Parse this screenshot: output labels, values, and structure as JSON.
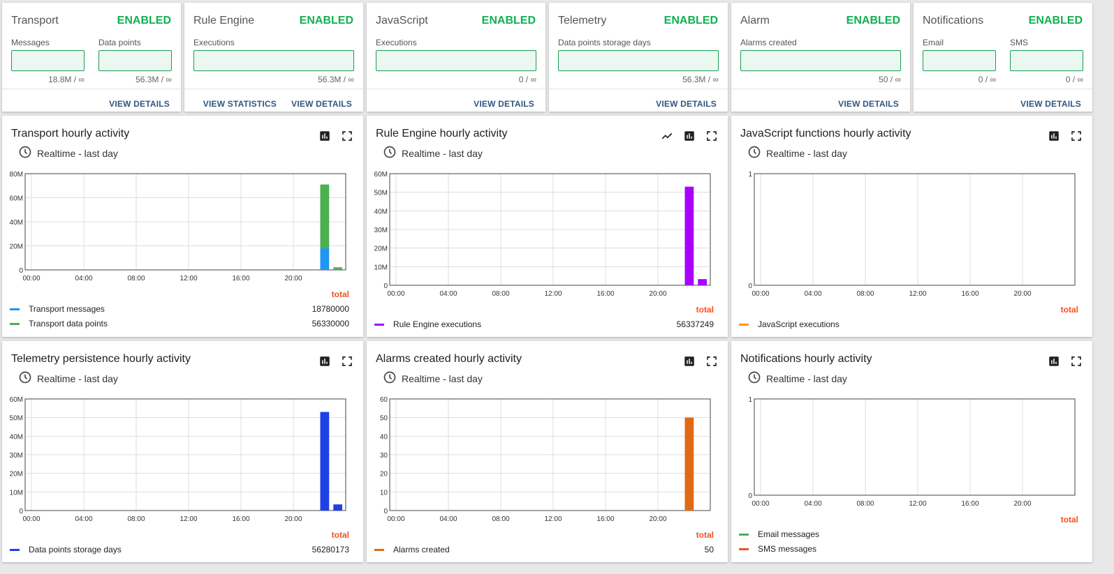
{
  "colors": {
    "enabled": "#10b050",
    "action": "#305680",
    "total": "#f4511e"
  },
  "apis": [
    {
      "title": "Transport",
      "status": "ENABLED",
      "counters": [
        {
          "label": "Messages",
          "value": "18.8M / ∞"
        },
        {
          "label": "Data points",
          "value": "56.3M / ∞"
        }
      ],
      "actions": [
        "VIEW DETAILS"
      ]
    },
    {
      "title": "Rule Engine",
      "status": "ENABLED",
      "counters": [
        {
          "label": "Executions",
          "value": "56.3M / ∞"
        }
      ],
      "actions": [
        "VIEW STATISTICS",
        "VIEW DETAILS"
      ]
    },
    {
      "title": "JavaScript",
      "status": "ENABLED",
      "counters": [
        {
          "label": "Executions",
          "value": "0 / ∞"
        }
      ],
      "actions": [
        "VIEW DETAILS"
      ]
    },
    {
      "title": "Telemetry",
      "status": "ENABLED",
      "counters": [
        {
          "label": "Data points storage days",
          "value": "56.3M / ∞"
        }
      ],
      "actions": [
        "VIEW DETAILS"
      ]
    },
    {
      "title": "Alarm",
      "status": "ENABLED",
      "counters": [
        {
          "label": "Alarms created",
          "value": "50 / ∞"
        }
      ],
      "actions": [
        "VIEW DETAILS"
      ]
    },
    {
      "title": "Notifications",
      "status": "ENABLED",
      "counters": [
        {
          "label": "Email",
          "value": "0 / ∞"
        },
        {
          "label": "SMS",
          "value": "0 / ∞"
        }
      ],
      "actions": [
        "VIEW DETAILS"
      ]
    }
  ],
  "widgets": [
    {
      "title": "Transport hourly activity",
      "timewindow": "Realtime - last day",
      "total_label": "total",
      "icons": [
        "bar-chart-icon",
        "fullscreen-icon"
      ],
      "legend": [
        {
          "name": "Transport messages",
          "color": "#2196f3",
          "total": "18780000"
        },
        {
          "name": "Transport data points",
          "color": "#4caf50",
          "total": "56330000"
        }
      ]
    },
    {
      "title": "Rule Engine hourly activity",
      "timewindow": "Realtime - last day",
      "total_label": "total",
      "icons": [
        "line-chart-icon",
        "bar-chart-icon",
        "fullscreen-icon"
      ],
      "legend": [
        {
          "name": "Rule Engine executions",
          "color": "#aa00ff",
          "total": "56337249"
        }
      ]
    },
    {
      "title": "JavaScript functions hourly activity",
      "timewindow": "Realtime - last day",
      "total_label": "total",
      "icons": [
        "bar-chart-icon",
        "fullscreen-icon"
      ],
      "legend": [
        {
          "name": "JavaScript executions",
          "color": "#ff9800",
          "total": ""
        }
      ]
    },
    {
      "title": "Telemetry persistence hourly activity",
      "timewindow": "Realtime - last day",
      "total_label": "total",
      "icons": [
        "bar-chart-icon",
        "fullscreen-icon"
      ],
      "legend": [
        {
          "name": "Data points storage days",
          "color": "#1e40e6",
          "total": "56280173"
        }
      ]
    },
    {
      "title": "Alarms created hourly activity",
      "timewindow": "Realtime - last day",
      "total_label": "total",
      "icons": [
        "bar-chart-icon",
        "fullscreen-icon"
      ],
      "legend": [
        {
          "name": "Alarms created",
          "color": "#e06a14",
          "total": "50"
        }
      ]
    },
    {
      "title": "Notifications hourly activity",
      "timewindow": "Realtime - last day",
      "total_label": "total",
      "icons": [
        "bar-chart-icon",
        "fullscreen-icon"
      ],
      "legend": [
        {
          "name": "Email messages",
          "color": "#4caf50",
          "total": ""
        },
        {
          "name": "SMS messages",
          "color": "#f4511e",
          "total": ""
        }
      ]
    }
  ],
  "chart_data": [
    {
      "type": "bar",
      "stacked": true,
      "x": [
        "00:00",
        "04:00",
        "08:00",
        "12:00",
        "16:00",
        "20:00"
      ],
      "yticks": [
        "0",
        "20M",
        "40M",
        "60M",
        "80M"
      ],
      "ylim": [
        0,
        80000000
      ],
      "series": [
        {
          "name": "Transport messages",
          "color": "#2196f3",
          "points": [
            [
              22,
              18000000
            ],
            [
              23,
              700000
            ]
          ]
        },
        {
          "name": "Transport data points",
          "color": "#4caf50",
          "points": [
            [
              22,
              53000000
            ],
            [
              23,
              1500000
            ]
          ]
        }
      ]
    },
    {
      "type": "bar",
      "x": [
        "00:00",
        "04:00",
        "08:00",
        "12:00",
        "16:00",
        "20:00"
      ],
      "yticks": [
        "0",
        "10M",
        "20M",
        "30M",
        "40M",
        "50M",
        "60M"
      ],
      "ylim": [
        0,
        60000000
      ],
      "series": [
        {
          "name": "Rule Engine executions",
          "color": "#aa00ff",
          "points": [
            [
              22,
              53000000
            ],
            [
              23,
              3300000
            ]
          ]
        }
      ]
    },
    {
      "type": "bar",
      "x": [
        "00:00",
        "04:00",
        "08:00",
        "12:00",
        "16:00",
        "20:00"
      ],
      "yticks": [
        "0",
        "1"
      ],
      "ylim": [
        0,
        1
      ],
      "series": [
        {
          "name": "JavaScript executions",
          "color": "#ff9800",
          "points": []
        }
      ]
    },
    {
      "type": "bar",
      "x": [
        "00:00",
        "04:00",
        "08:00",
        "12:00",
        "16:00",
        "20:00"
      ],
      "yticks": [
        "0",
        "10M",
        "20M",
        "30M",
        "40M",
        "50M",
        "60M"
      ],
      "ylim": [
        0,
        60000000
      ],
      "series": [
        {
          "name": "Data points storage days",
          "color": "#1e40e6",
          "points": [
            [
              22,
              53000000
            ],
            [
              23,
              3300000
            ]
          ]
        }
      ]
    },
    {
      "type": "bar",
      "x": [
        "00:00",
        "04:00",
        "08:00",
        "12:00",
        "16:00",
        "20:00"
      ],
      "yticks": [
        "0",
        "10",
        "20",
        "30",
        "40",
        "50",
        "60"
      ],
      "ylim": [
        0,
        60
      ],
      "series": [
        {
          "name": "Alarms created",
          "color": "#e06a14",
          "points": [
            [
              22,
              50
            ]
          ]
        }
      ]
    },
    {
      "type": "bar",
      "x": [
        "00:00",
        "04:00",
        "08:00",
        "12:00",
        "16:00",
        "20:00"
      ],
      "yticks": [
        "0",
        "1"
      ],
      "ylim": [
        0,
        1
      ],
      "series": [
        {
          "name": "Email messages",
          "color": "#4caf50",
          "points": []
        },
        {
          "name": "SMS messages",
          "color": "#f4511e",
          "points": []
        }
      ]
    }
  ]
}
